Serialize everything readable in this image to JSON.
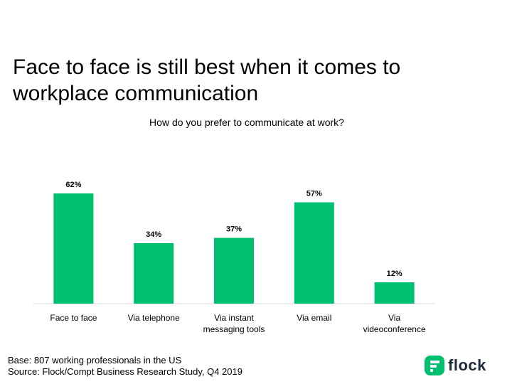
{
  "headline": "Face to face is still best when it comes to workplace communication",
  "brand": {
    "name": "flock",
    "color": "#00bf6f"
  },
  "footer": {
    "base": "Base: 807 working professionals in the US",
    "source": "Source: Flock/Compt Business Research Study, Q4 2019"
  },
  "chart_data": {
    "type": "bar",
    "title": "How do you prefer to communicate at work?",
    "categories": [
      [
        "Face to face"
      ],
      [
        "Via telephone"
      ],
      [
        "Via instant",
        "messaging tools"
      ],
      [
        "Via email"
      ],
      [
        "Via",
        "videoconference"
      ]
    ],
    "values": [
      62,
      34,
      37,
      57,
      12
    ],
    "value_labels": [
      "62%",
      "34%",
      "37%",
      "57%",
      "12%"
    ],
    "unit": "%",
    "bar_color": "#00bf6f",
    "grid": false,
    "legend": "none"
  }
}
